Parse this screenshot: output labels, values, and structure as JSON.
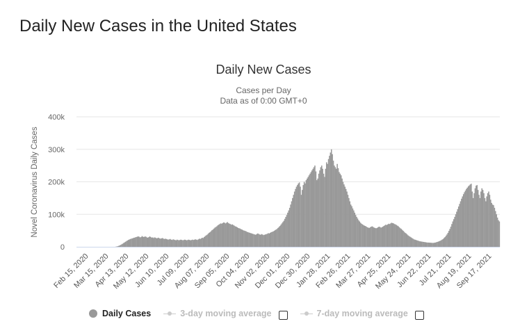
{
  "page": {
    "title": "Daily New Cases in the United States"
  },
  "chart_data": {
    "type": "bar",
    "title": "Daily New Cases",
    "subtitle_lines": [
      "Cases per Day",
      "Data as of 0:00 GMT+0"
    ],
    "ylabel": "Novel Coronavirus Daily Cases",
    "xlabel": "",
    "ylim": [
      0,
      400000
    ],
    "y_ticks": [
      {
        "value": 0,
        "label": "0"
      },
      {
        "value": 100000,
        "label": "100k"
      },
      {
        "value": 200000,
        "label": "200k"
      },
      {
        "value": 300000,
        "label": "300k"
      },
      {
        "value": 400000,
        "label": "400k"
      }
    ],
    "x_tick_labels": [
      "Feb 15, 2020",
      "Mar 15, 2020",
      "Apr 13, 2020",
      "May 12, 2020",
      "Jun 10, 2020",
      "Jul 09, 2020",
      "Aug 07, 2020",
      "Sep 05, 2020",
      "Oct 04, 2020",
      "Nov 02, 2020",
      "Dec 01, 2020",
      "Dec 30, 2020",
      "Jan 28, 2021",
      "Feb 26, 2021",
      "Mar 27, 2021",
      "Apr 25, 2021",
      "May 24, 2021",
      "Jun 22, 2021",
      "Jul 21, 2021",
      "Aug 19, 2021",
      "Sep 17, 2021"
    ],
    "series": [
      {
        "name": "Daily Cases",
        "color": "#999999",
        "values": [
          0,
          0,
          0,
          0,
          0,
          0,
          0,
          0,
          0,
          0,
          0,
          0,
          0,
          0,
          0,
          0,
          0,
          0,
          0,
          0,
          0,
          0,
          0,
          0,
          0,
          0,
          0,
          0,
          0,
          0,
          0,
          0,
          0,
          0,
          0,
          0,
          0,
          0,
          0,
          0,
          500,
          1000,
          1800,
          2900,
          4200,
          5800,
          7600,
          9500,
          11500,
          13600,
          15600,
          17600,
          19500,
          21200,
          22700,
          24000,
          25000,
          26000,
          27000,
          28000,
          29000,
          30000,
          31000,
          32000,
          31000,
          29000,
          30000,
          33000,
          31000,
          30000,
          32000,
          31000,
          29000,
          28000,
          30000,
          32000,
          30000,
          28000,
          29000,
          27000,
          29000,
          28000,
          26000,
          27000,
          28000,
          26000,
          25000,
          26000,
          27000,
          25000,
          24000,
          25000,
          24000,
          23000,
          22000,
          23000,
          24000,
          22000,
          21000,
          23000,
          22000,
          21000,
          20000,
          22000,
          21000,
          20000,
          21000,
          22000,
          21000,
          20000,
          21000,
          22000,
          21000,
          20000,
          21000,
          22000,
          21000,
          20000,
          21000,
          22000,
          21000,
          22000,
          23000,
          22000,
          21000,
          23000,
          25000,
          24000,
          26000,
          28000,
          27000,
          30000,
          33000,
          35000,
          37000,
          40000,
          43000,
          45000,
          48000,
          51000,
          53000,
          56000,
          59000,
          61000,
          63000,
          66000,
          68000,
          70000,
          72000,
          71000,
          73000,
          75000,
          74000,
          72000,
          74000,
          76000,
          73000,
          71000,
          70000,
          68000,
          69000,
          67000,
          65000,
          63000,
          62000,
          60000,
          58000,
          57000,
          56000,
          54000,
          53000,
          51000,
          50000,
          49000,
          48000,
          46000,
          45000,
          44000,
          43000,
          42000,
          41000,
          40000,
          39000,
          38000,
          37000,
          39000,
          41000,
          40000,
          38000,
          37000,
          39000,
          38000,
          36000,
          37000,
          38000,
          39000,
          40000,
          42000,
          41000,
          43000,
          45000,
          46000,
          47000,
          49000,
          51000,
          53000,
          55000,
          58000,
          61000,
          64000,
          68000,
          72000,
          76000,
          80000,
          86000,
          92000,
          98000,
          105000,
          112000,
          120000,
          130000,
          140000,
          150000,
          160000,
          170000,
          178000,
          185000,
          190000,
          195000,
          198000,
          185000,
          160000,
          175000,
          190000,
          200000,
          195000,
          205000,
          210000,
          215000,
          220000,
          225000,
          230000,
          235000,
          240000,
          245000,
          250000,
          232000,
          205000,
          210000,
          225000,
          235000,
          245000,
          250000,
          240000,
          225000,
          215000,
          240000,
          260000,
          255000,
          270000,
          280000,
          290000,
          300000,
          285000,
          265000,
          250000,
          245000,
          240000,
          255000,
          242000,
          230000,
          225000,
          220000,
          210000,
          200000,
          192000,
          185000,
          178000,
          170000,
          160000,
          150000,
          140000,
          130000,
          125000,
          118000,
          112000,
          105000,
          98000,
          92000,
          87000,
          82000,
          78000,
          74000,
          71000,
          69000,
          67000,
          65000,
          64000,
          62000,
          60000,
          59000,
          58000,
          60000,
          62000,
          63000,
          61000,
          59000,
          58000,
          57000,
          58000,
          60000,
          62000,
          61000,
          59000,
          60000,
          62000,
          64000,
          66000,
          68000,
          67000,
          69000,
          71000,
          70000,
          72000,
          74000,
          73000,
          72000,
          70000,
          69000,
          67000,
          65000,
          63000,
          60000,
          57000,
          55000,
          52000,
          49000,
          46000,
          43000,
          41000,
          38000,
          35000,
          33000,
          31000,
          29000,
          27000,
          25000,
          23000,
          22000,
          21000,
          20000,
          19000,
          18000,
          17000,
          16500,
          16000,
          15500,
          15000,
          14500,
          14000,
          13500,
          13000,
          13000,
          12800,
          12500,
          12300,
          12000,
          12000,
          12500,
          13000,
          14000,
          15000,
          16000,
          17000,
          18500,
          20000,
          22000,
          24000,
          27000,
          30000,
          34000,
          38000,
          43000,
          49000,
          55000,
          62000,
          70000,
          78000,
          85000,
          92000,
          100000,
          108000,
          116000,
          124000,
          132000,
          140000,
          148000,
          155000,
          162000,
          168000,
          173000,
          178000,
          182000,
          186000,
          189000,
          192000,
          194000,
          170000,
          150000,
          165000,
          180000,
          188000,
          190000,
          175000,
          160000,
          150000,
          170000,
          180000,
          175000,
          165000,
          150000,
          140000,
          155000,
          165000,
          170000,
          160000,
          145000,
          135000,
          130000,
          128000,
          120000,
          110000,
          100000,
          90000,
          82000,
          78000
        ]
      }
    ],
    "legend": [
      {
        "label": "Daily Cases",
        "active": true
      },
      {
        "label": "3-day moving average",
        "active": false
      },
      {
        "label": "7-day moving average",
        "active": false
      }
    ],
    "grid": true,
    "legend_position": "bottom"
  },
  "colors": {
    "bar": "#999999",
    "grid": "#e6e6e6",
    "axis_text": "#666666",
    "title": "#333333"
  }
}
